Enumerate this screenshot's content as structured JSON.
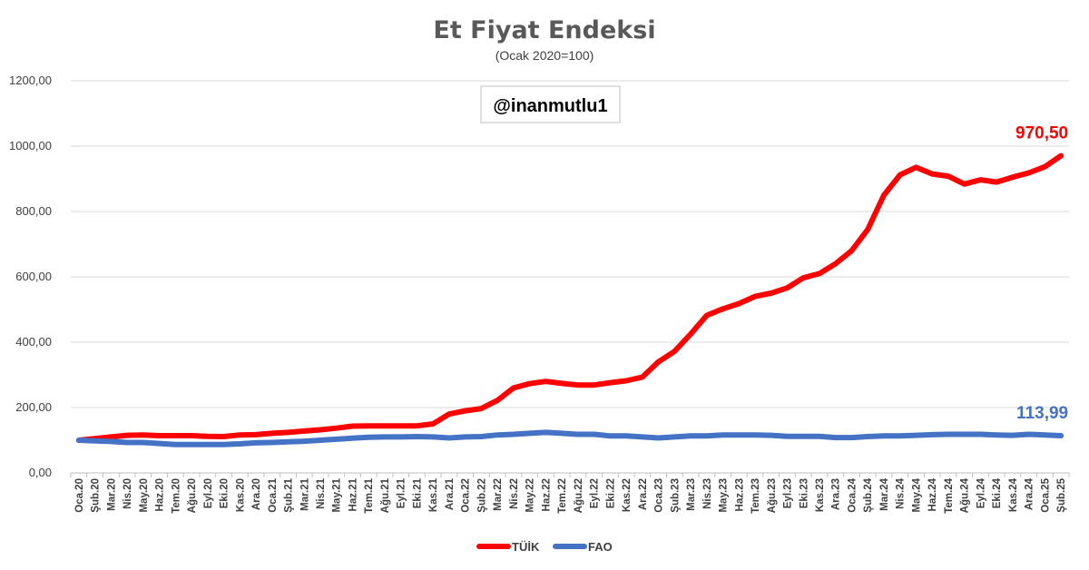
{
  "chart_data": {
    "type": "line",
    "title": "Et Fiyat Endeksi",
    "subtitle": "(Ocak 2020=100)",
    "watermark": "@inanmutlu1",
    "ylim": [
      0,
      1200
    ],
    "ytick_values": [
      0,
      200,
      400,
      600,
      800,
      1000,
      1200
    ],
    "ytick_labels": [
      "0,00",
      "200,00",
      "400,00",
      "600,00",
      "800,00",
      "1000,00",
      "1200,00"
    ],
    "grid": true,
    "legend_position": "bottom",
    "categories": [
      "Oca.20",
      "Şub.20",
      "Mar.20",
      "Nis.20",
      "May.20",
      "Haz.20",
      "Tem.20",
      "Ağu.20",
      "Eyl.20",
      "Eki.20",
      "Kas.20",
      "Ara.20",
      "Oca.21",
      "Şub.21",
      "Mar.21",
      "Nis.21",
      "May.21",
      "Haz.21",
      "Tem.21",
      "Ağu.21",
      "Eyl.21",
      "Eki.21",
      "Kas.21",
      "Ara.21",
      "Oca.22",
      "Şub.22",
      "Mar.22",
      "Nis.22",
      "May.22",
      "Haz.22",
      "Tem.22",
      "Ağu.22",
      "Eyl.22",
      "Eki.22",
      "Kas.22",
      "Ara.22",
      "Oca.23",
      "Şub.23",
      "Mar.23",
      "Nis.23",
      "May.23",
      "Haz.23",
      "Tem.23",
      "Ağu.23",
      "Eyl.23",
      "Eki.23",
      "Kas.23",
      "Ara.23",
      "Oca.24",
      "Şub.24",
      "Mar.24",
      "Nis.24",
      "May.24",
      "Haz.24",
      "Tem.24",
      "Ağu.24",
      "Eyl.24",
      "Eki.24",
      "Kas.24",
      "Ara.24",
      "Oca.25",
      "Şub.25"
    ],
    "series": [
      {
        "name": "TÜİK",
        "color": "#ff0000",
        "end_label": "970,50",
        "values": [
          100,
          105,
          110,
          115,
          116,
          114,
          114,
          114,
          112,
          111,
          116,
          117,
          121,
          124,
          128,
          132,
          137,
          143,
          144,
          144,
          144,
          144,
          150,
          180,
          190,
          197,
          222,
          260,
          273,
          280,
          274,
          269,
          269,
          276,
          282,
          293,
          340,
          372,
          425,
          482,
          502,
          518,
          540,
          550,
          566,
          597,
          610,
          640,
          680,
          745,
          850,
          912,
          935,
          915,
          908,
          884,
          897,
          890,
          905,
          918,
          937,
          970.5
        ]
      },
      {
        "name": "FAO",
        "color": "#4472c4",
        "end_label": "113,99",
        "values": [
          100,
          98,
          96,
          93,
          93,
          90,
          87,
          87,
          87,
          87,
          89,
          92,
          93,
          95,
          97,
          100,
          103,
          106,
          109,
          110,
          110,
          111,
          110,
          107,
          110,
          111,
          116,
          118,
          121,
          124,
          121,
          118,
          118,
          113,
          113,
          110,
          107,
          110,
          113,
          113,
          116,
          116,
          116,
          115,
          112,
          112,
          112,
          108,
          108,
          111,
          113,
          113,
          115,
          117,
          118,
          118,
          118,
          116,
          115,
          118,
          116,
          113.99
        ]
      }
    ]
  }
}
